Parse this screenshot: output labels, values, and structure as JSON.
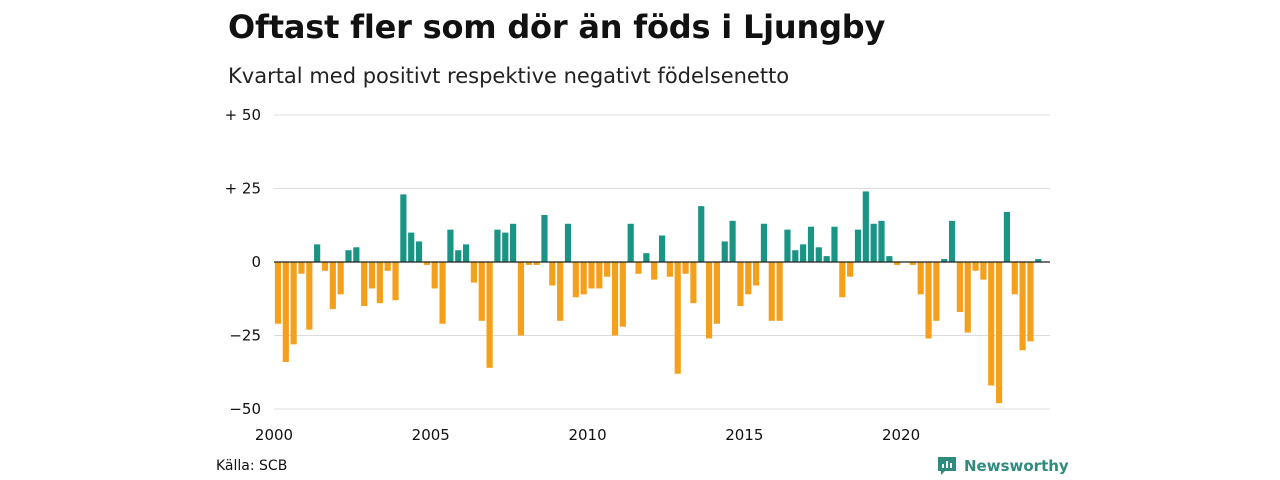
{
  "title": "Oftast fler som dör än föds i Ljungby",
  "subtitle": "Kvartal med positivt respektive negativt födelsenetto",
  "source": "Källa: SCB",
  "brand": "Newsworthy",
  "colors": {
    "positive": "#1a9484",
    "negative": "#f5a01a",
    "grid": "#dcdcdc",
    "brand": "#2e8b7e"
  },
  "chart_data": {
    "type": "bar",
    "ylim": [
      -50,
      50
    ],
    "xlim": [
      2000,
      2024.75
    ],
    "ytick_values": [
      50,
      25,
      0,
      -25,
      -50
    ],
    "ytick_labels": [
      "+ 50",
      "+ 25",
      "0",
      "−25",
      "−50"
    ],
    "xtick_values": [
      2000,
      2005,
      2010,
      2015,
      2020
    ],
    "xtick_labels": [
      "2000",
      "2005",
      "2010",
      "2015",
      "2020"
    ],
    "grid": true,
    "start_year": 2000,
    "values": [
      -21,
      -34,
      -28,
      -4,
      -23,
      6,
      -3,
      -16,
      -11,
      4,
      5,
      -15,
      -9,
      -14,
      -3,
      -13,
      23,
      10,
      7,
      -1,
      -9,
      -21,
      11,
      4,
      6,
      -7,
      -20,
      -36,
      11,
      10,
      13,
      -25,
      -1,
      -1,
      16,
      -8,
      -20,
      13,
      -12,
      -11,
      -9,
      -9,
      -5,
      -25,
      -22,
      13,
      -4,
      3,
      -6,
      9,
      -5,
      -38,
      -4,
      -14,
      19,
      -26,
      -21,
      7,
      14,
      -15,
      -11,
      -8,
      13,
      -20,
      -20,
      11,
      4,
      6,
      12,
      5,
      2,
      12,
      -12,
      -5,
      11,
      24,
      13,
      14,
      2,
      -1,
      0,
      -1,
      -11,
      -26,
      -20,
      1,
      14,
      -17,
      -24,
      -3,
      -6,
      -42,
      -48,
      17,
      -11,
      -30,
      -27,
      1
    ]
  }
}
